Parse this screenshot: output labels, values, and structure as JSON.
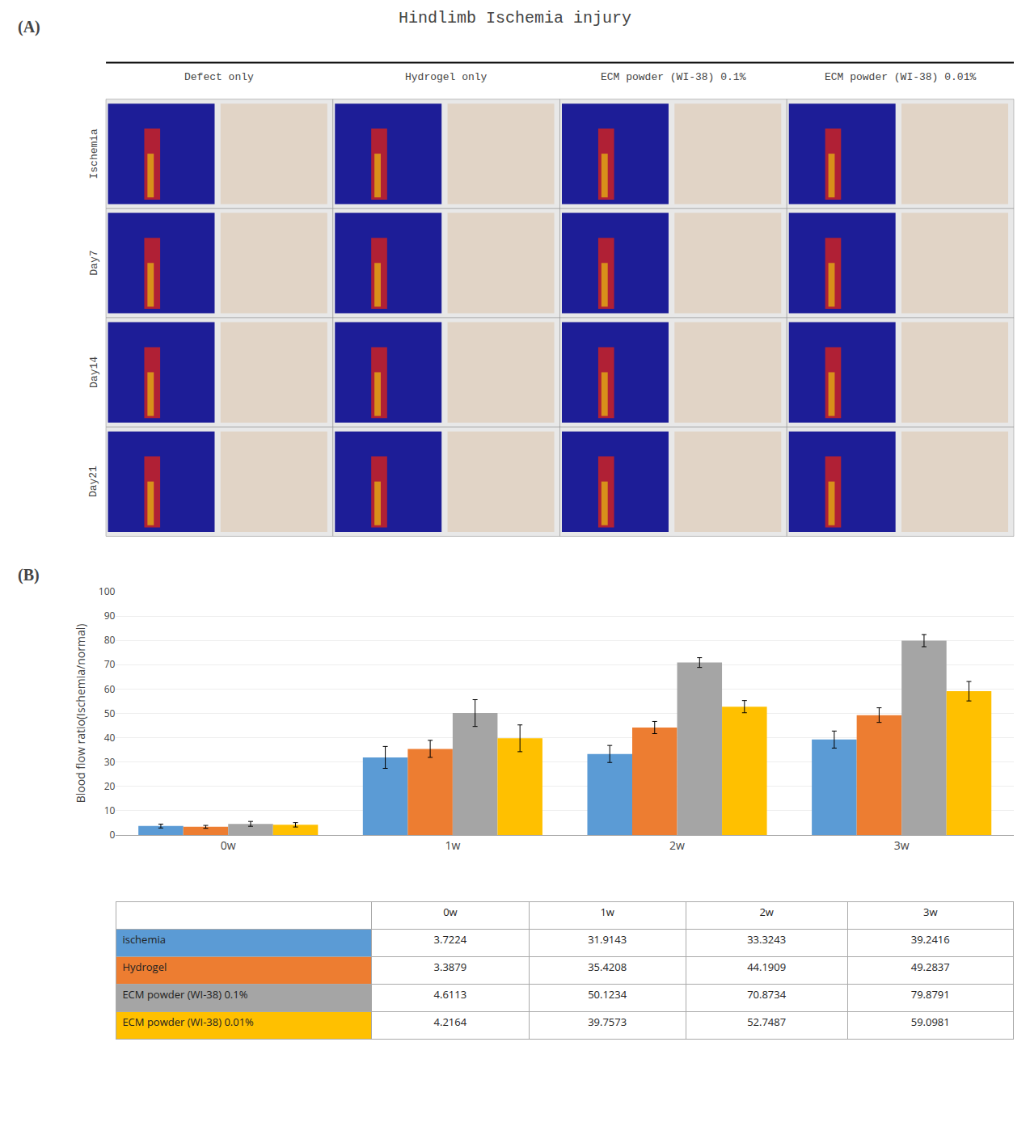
{
  "chart_data": {
    "type": "bar",
    "title": "Hindlimb Ischemia injury",
    "annotations": [
      "(A)",
      "(B)",
      "Defect only",
      "Hydrogel only",
      "ECM powder (WI-38) 0.1%",
      "ECM powder (WI-38) 0.01%",
      "Ischemia",
      "Day7",
      "Day14",
      "Day21"
    ],
    "categories": [
      "0w",
      "1w",
      "2w",
      "3w"
    ],
    "series": [
      {
        "name": "ischemia",
        "color": "#5B9BD5",
        "values": [
          3.7224,
          31.9143,
          33.3243,
          39.2416
        ],
        "errors": [
          0.8,
          4.5,
          3.5,
          3.5
        ]
      },
      {
        "name": "Hydrogel",
        "color": "#ED7D31",
        "values": [
          3.3879,
          35.4208,
          44.1909,
          49.2837
        ],
        "errors": [
          0.6,
          3.5,
          2.5,
          3.0
        ]
      },
      {
        "name": "ECM powder (WI-38) 0.1%",
        "color": "#A5A5A5",
        "values": [
          4.6113,
          50.1234,
          70.8734,
          79.8791
        ],
        "errors": [
          1.0,
          5.5,
          2.0,
          2.5
        ]
      },
      {
        "name": "ECM powder (WI-38) 0.01%",
        "color": "#FFC000",
        "values": [
          4.2164,
          39.7573,
          52.7487,
          59.0981
        ],
        "errors": [
          0.9,
          5.5,
          2.5,
          4.0
        ]
      }
    ],
    "ylabel": "Blood flow ratio(Ischemia/normal)",
    "ylim": [
      0,
      100
    ],
    "yticks": [
      0,
      10,
      20,
      30,
      40,
      50,
      60,
      70,
      80,
      90,
      100
    ],
    "grid": true
  }
}
